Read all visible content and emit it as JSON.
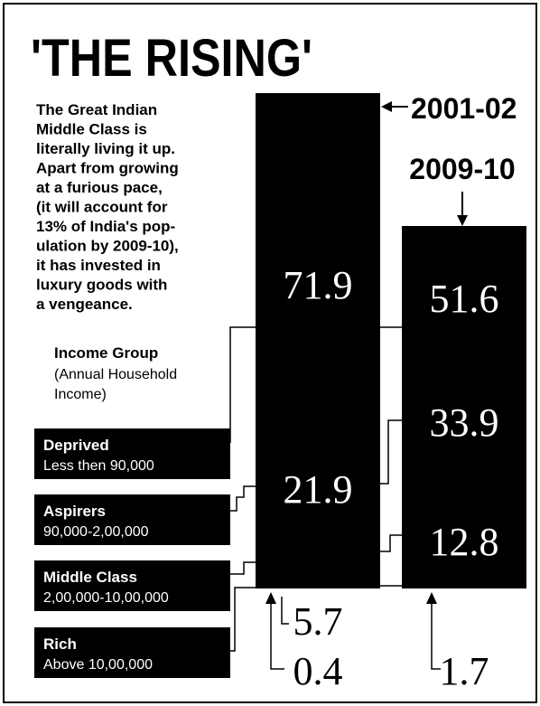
{
  "title": "'THE RISING'",
  "intro": [
    "The Great Indian",
    "Middle Class is",
    "literally living it up.",
    "Apart from growing",
    "at a furious pace,",
    "(it will account for",
    "13% of India's pop-",
    "ulation by 2009-10),",
    "it has invested in",
    "luxury goods with",
    "a vengeance."
  ],
  "legend": {
    "heading": "Income Group",
    "subheading": [
      "(Annual Household",
      "Income)"
    ]
  },
  "groups": [
    {
      "name": "Deprived",
      "range": "Less then 90,000"
    },
    {
      "name": "Aspirers",
      "range": "90,000-2,00,000"
    },
    {
      "name": "Middle Class",
      "range": "2,00,000-10,00,000"
    },
    {
      "name": "Rich",
      "range": "Above 10,00,000"
    }
  ],
  "periods": [
    {
      "label": "2001-02",
      "values": [
        71.9,
        21.9,
        5.7,
        0.4
      ]
    },
    {
      "label": "2009-10",
      "values": [
        51.6,
        33.9,
        12.8,
        1.7
      ]
    }
  ]
}
